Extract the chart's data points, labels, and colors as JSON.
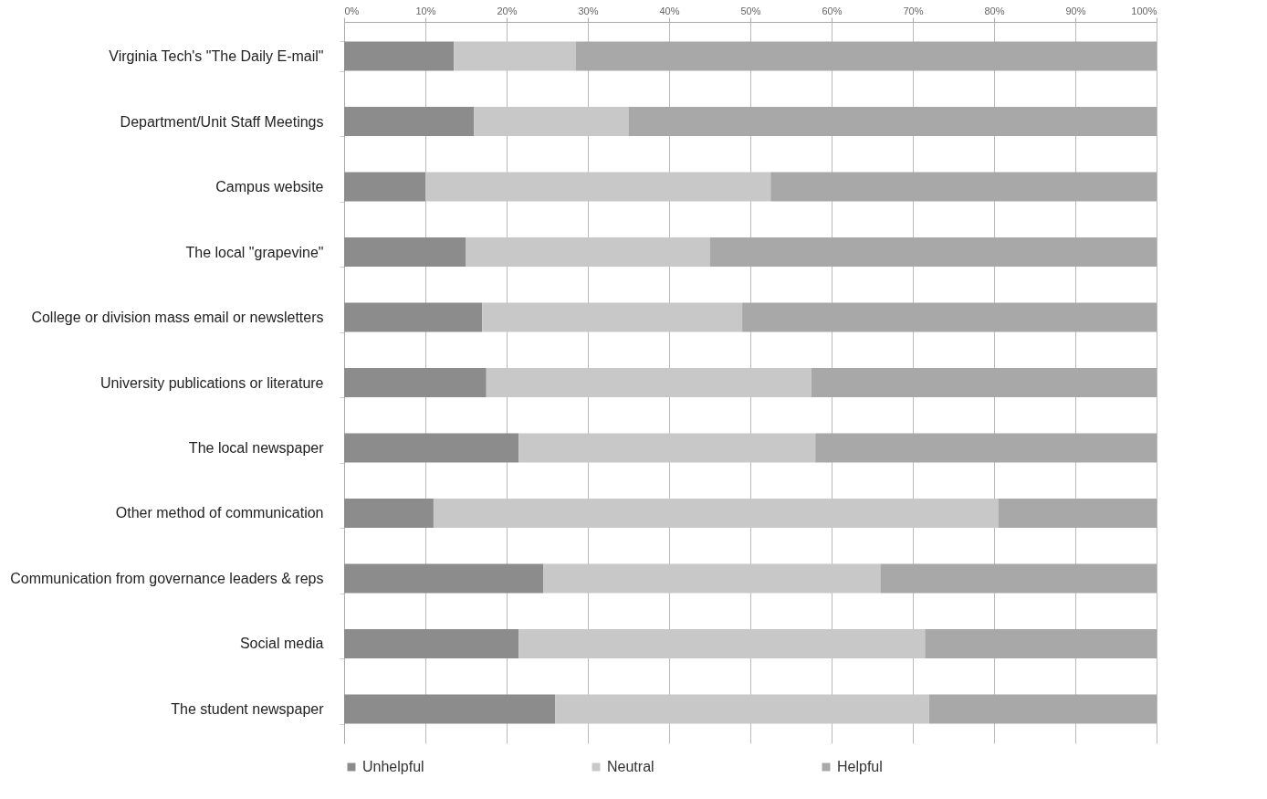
{
  "chart_data": {
    "type": "bar",
    "orientation": "horizontal",
    "stacked": true,
    "categories": [
      "Virginia Tech's \"The Daily E-mail\"",
      "Department/Unit Staff Meetings",
      "Campus website",
      "The local \"grapevine\"",
      "College or division mass email or newsletters",
      "University publications or literature",
      "The local newspaper",
      "Other method of communication",
      "Communication from  governance leaders & reps",
      "Social media",
      "The student newspaper"
    ],
    "series": [
      {
        "name": "Unhelpful",
        "color": "#8c8c8c",
        "values": [
          13.5,
          16,
          10,
          15,
          17,
          17.5,
          21.5,
          11,
          24.5,
          21.5,
          26
        ]
      },
      {
        "name": "Neutral",
        "color": "#c8c8c8",
        "values": [
          15,
          19,
          42.5,
          30,
          32,
          40,
          36.5,
          69.5,
          41.5,
          50,
          46
        ]
      },
      {
        "name": "Helpful",
        "color": "#a8a8a8",
        "values": [
          71.5,
          65,
          47.5,
          55,
          51,
          42.5,
          42,
          19.5,
          34,
          28.5,
          28
        ]
      }
    ],
    "xlim": [
      0,
      100
    ],
    "xticks": [
      {
        "value": 0,
        "label": "0%"
      },
      {
        "value": 10,
        "label": "10%"
      },
      {
        "value": 20,
        "label": "20%"
      },
      {
        "value": 30,
        "label": "30%"
      },
      {
        "value": 40,
        "label": "40%"
      },
      {
        "value": 50,
        "label": "50%"
      },
      {
        "value": 60,
        "label": "60%"
      },
      {
        "value": 70,
        "label": "70%"
      },
      {
        "value": 80,
        "label": "80%"
      },
      {
        "value": 90,
        "label": "90%"
      },
      {
        "value": 100,
        "label": "100%"
      }
    ],
    "grid": "x",
    "legend": "bottom"
  }
}
